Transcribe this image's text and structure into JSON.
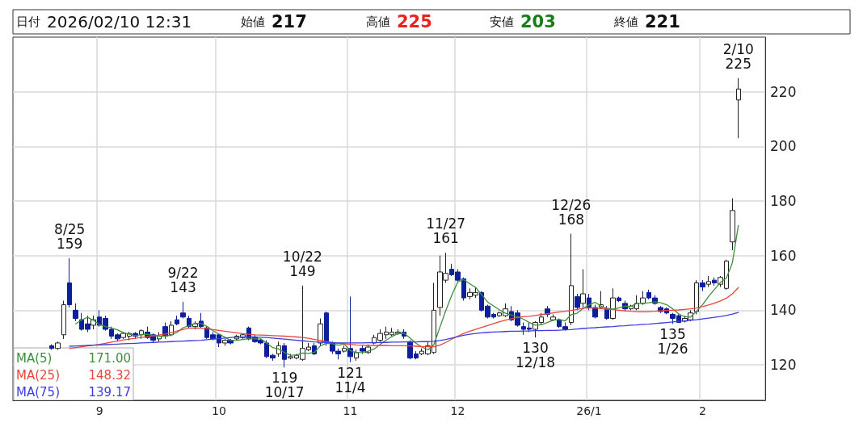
{
  "chart_data": {
    "type": "candlestick",
    "categories": [
      null,
      null,
      null,
      null,
      null,
      null,
      null,
      null,
      null,
      null,
      null,
      null,
      null,
      null,
      "9",
      null,
      null,
      null,
      null,
      null,
      null,
      null,
      null,
      null,
      null,
      null,
      null,
      null,
      null,
      null,
      null,
      null,
      null,
      null,
      "10",
      null,
      null,
      null,
      null,
      null,
      null,
      null,
      null,
      null,
      null,
      null,
      null,
      null,
      null,
      null,
      null,
      null,
      null,
      null,
      null,
      null,
      "11",
      null,
      null,
      null,
      null,
      null,
      null,
      null,
      null,
      null,
      null,
      null,
      null,
      null,
      null,
      null,
      null,
      null,
      "12",
      null,
      null,
      null,
      null,
      null,
      null,
      null,
      null,
      null,
      null,
      null,
      null,
      null,
      null,
      null,
      null,
      null,
      null,
      null,
      null,
      null,
      "26/1",
      null,
      null,
      null,
      null,
      null,
      null,
      null,
      null,
      null,
      null,
      null,
      null,
      null,
      null,
      null,
      null,
      null,
      null,
      "2",
      null,
      null,
      null,
      null,
      null,
      null
    ],
    "ohlc": [
      null,
      null,
      null,
      null,
      null,
      null,
      [
        127,
        127.5,
        125.5,
        126
      ],
      [
        126,
        128.5,
        125.5,
        128
      ],
      [
        131,
        143.5,
        129.5,
        142
      ],
      [
        150,
        159,
        141,
        142
      ],
      [
        140,
        142.5,
        136,
        137
      ],
      [
        136.5,
        139,
        132.5,
        133
      ],
      [
        135,
        138,
        132,
        133
      ],
      [
        134.5,
        138,
        133,
        136.5
      ],
      [
        137.5,
        140,
        134,
        134.5
      ],
      [
        137,
        138,
        132.5,
        133
      ],
      [
        133,
        134,
        129.5,
        130.5
      ],
      [
        131,
        131.5,
        128.5,
        129.5
      ],
      [
        130,
        132,
        129.5,
        131.5
      ],
      [
        130.5,
        132,
        129,
        131.5
      ],
      [
        131.5,
        132,
        129.5,
        130.5
      ],
      [
        131,
        133,
        129.5,
        132.5
      ],
      [
        132,
        134,
        129.5,
        130
      ],
      [
        131,
        131.5,
        128,
        129
      ],
      [
        129.5,
        132,
        128.5,
        130.5
      ],
      [
        134,
        135.5,
        129.5,
        130.5
      ],
      [
        131,
        136,
        130.5,
        134.5
      ],
      [
        136.5,
        138,
        134.5,
        135
      ],
      [
        139,
        143,
        137,
        137.5
      ],
      [
        137,
        138,
        133.5,
        134
      ],
      [
        134,
        136,
        133,
        135
      ],
      [
        136,
        139,
        133.5,
        134
      ],
      [
        133.5,
        134,
        129.5,
        130
      ],
      [
        131,
        132,
        129,
        129.5
      ],
      [
        131,
        131.5,
        126.5,
        128
      ],
      [
        128,
        129.5,
        127,
        129
      ],
      [
        129,
        129.5,
        127.5,
        128
      ],
      [
        129.5,
        131,
        129,
        130.5
      ],
      [
        130,
        131.5,
        129.5,
        131
      ],
      [
        133.5,
        134,
        129,
        129.5
      ],
      [
        130,
        131,
        128,
        128.5
      ],
      [
        129,
        129.5,
        127.5,
        128
      ],
      [
        128,
        129,
        122.5,
        123
      ],
      [
        123.5,
        124,
        121.5,
        122.5
      ],
      [
        124,
        128.5,
        123,
        127
      ],
      [
        127,
        128,
        119,
        122
      ],
      [
        122.5,
        124,
        122,
        123
      ],
      [
        122.5,
        124,
        122,
        123.5
      ],
      [
        122,
        149,
        121.5,
        126
      ],
      [
        125.5,
        128,
        125,
        126.5
      ],
      [
        127,
        128,
        123.5,
        124
      ],
      [
        128,
        137,
        127,
        135
      ],
      [
        139,
        139.5,
        127,
        128
      ],
      [
        128,
        128.5,
        124,
        125
      ],
      [
        125,
        126,
        122,
        124
      ],
      [
        125,
        127,
        124.5,
        126
      ],
      [
        126,
        145,
        121,
        123
      ],
      [
        122.5,
        125.5,
        121.5,
        124.5
      ],
      [
        126,
        127,
        124,
        125
      ],
      [
        124.5,
        127.5,
        124,
        126.5
      ],
      [
        128,
        131,
        127.5,
        130
      ],
      [
        129,
        133,
        128.5,
        131.5
      ],
      [
        131,
        134,
        129.5,
        132
      ],
      [
        131,
        133.5,
        130.5,
        132
      ],
      [
        131.5,
        133,
        131,
        132
      ],
      [
        132,
        133,
        129.5,
        130.5
      ],
      [
        128.5,
        129,
        122,
        122.5
      ],
      [
        124,
        125,
        122,
        122.5
      ],
      [
        124,
        126,
        123.5,
        125
      ],
      [
        124,
        128.5,
        123.5,
        127
      ],
      [
        124.5,
        150,
        124,
        140
      ],
      [
        141,
        160,
        138,
        154
      ],
      [
        151,
        161,
        150,
        153.5
      ],
      [
        155,
        157,
        152.5,
        153
      ],
      [
        154,
        155,
        150.5,
        151
      ],
      [
        151.5,
        152,
        143.5,
        144.5
      ],
      [
        145,
        148,
        144,
        146.5
      ],
      [
        145.5,
        148.5,
        144.5,
        146.5
      ],
      [
        146.5,
        147,
        139.5,
        140
      ],
      [
        141.5,
        142,
        137,
        137.5
      ],
      [
        138.5,
        139,
        137,
        137.5
      ],
      [
        138,
        139.5,
        137.5,
        139
      ],
      [
        138,
        142.5,
        137.5,
        140.5
      ],
      [
        139.5,
        141.5,
        136,
        136.5
      ],
      [
        139,
        140,
        134,
        134.5
      ],
      [
        134,
        135.5,
        131,
        133
      ],
      [
        133.5,
        135.5,
        132,
        133
      ],
      [
        133,
        136,
        130,
        135.5
      ],
      [
        135.5,
        139,
        134.5,
        137.5
      ],
      [
        140.5,
        141.5,
        137.5,
        138.5
      ],
      [
        136.5,
        138.5,
        136,
        137.5
      ],
      [
        136.5,
        137,
        133.5,
        134
      ],
      [
        134,
        135.5,
        132.5,
        133
      ],
      [
        135.5,
        168,
        134.5,
        149
      ],
      [
        145,
        146,
        140,
        141
      ],
      [
        142.5,
        155,
        141,
        146
      ],
      [
        144.5,
        146,
        140,
        141
      ],
      [
        141,
        142,
        137,
        137.5
      ],
      [
        141,
        147,
        140.5,
        142
      ],
      [
        140.5,
        141.5,
        136.5,
        137
      ],
      [
        137,
        148,
        136.5,
        144.5
      ],
      [
        144.5,
        145,
        143,
        143.5
      ],
      [
        142.5,
        143.5,
        139.5,
        140.5
      ],
      [
        140.5,
        142,
        140,
        141.5
      ],
      [
        140.5,
        145.5,
        140,
        142.5
      ],
      [
        142.5,
        147,
        142,
        144.5
      ],
      [
        146.5,
        147.5,
        144,
        144.5
      ],
      [
        144.5,
        145.5,
        142,
        142.5
      ],
      [
        141,
        141.5,
        139,
        139.5
      ],
      [
        140.5,
        141,
        138.5,
        139
      ],
      [
        138.5,
        139,
        135,
        137
      ],
      [
        138,
        138.5,
        135.5,
        135.5
      ],
      [
        136,
        138,
        135.5,
        137
      ],
      [
        136.5,
        140,
        136,
        139
      ],
      [
        139.5,
        151,
        138.5,
        150
      ],
      [
        150,
        151,
        147,
        148.5
      ],
      [
        149.5,
        152.5,
        148.5,
        150.5
      ],
      [
        151,
        152,
        149,
        150
      ],
      [
        149.5,
        152.5,
        148.5,
        152
      ],
      [
        148,
        158.5,
        147.5,
        158
      ],
      [
        165,
        181,
        162,
        176.5
      ],
      [
        217,
        225,
        203,
        221
      ]
    ],
    "series": [
      {
        "name": "MA(5)",
        "type": "line",
        "color": "#3e8e3e",
        "values": [
          null,
          null,
          null,
          null,
          null,
          null,
          null,
          null,
          null,
          null,
          135.0,
          136.4,
          137.4,
          136.3,
          134.8,
          134.0,
          133.5,
          132.8,
          131.8,
          131.2,
          130.7,
          131.1,
          131.2,
          130.7,
          130.5,
          130.5,
          130.9,
          131.9,
          133.6,
          134.3,
          135.2,
          135.1,
          134.1,
          132.5,
          131.3,
          130.1,
          128.9,
          129.0,
          129.3,
          129.6,
          129.5,
          129.5,
          128.0,
          126.3,
          125.8,
          124.5,
          123.5,
          123.6,
          124.3,
          124.2,
          124.6,
          127.0,
          127.9,
          127.7,
          127.2,
          127.6,
          125.2,
          124.5,
          124.5,
          125.0,
          125.8,
          127.5,
          129.0,
          130.4,
          131.5,
          131.6,
          129.8,
          127.9,
          126.5,
          125.5,
          127.4,
          133.7,
          139.9,
          145.5,
          150.3,
          151.2,
          149.7,
          148.3,
          145.7,
          143.0,
          141.6,
          140.1,
          138.9,
          138.2,
          137.6,
          136.7,
          135.5,
          134.5,
          134.7,
          135.5,
          136.4,
          136.6,
          136.1,
          138.4,
          138.9,
          140.6,
          142.0,
          142.9,
          141.5,
          140.7,
          140.4,
          140.9,
          141.5,
          141.4,
          142.5,
          142.5,
          142.7,
          143.1,
          142.7,
          142.0,
          140.5,
          138.7,
          137.6,
          137.5,
          139.7,
          142.0,
          145.0,
          147.6,
          150.2,
          151.8,
          157.4,
          171.0
        ]
      },
      {
        "name": "MA(25)",
        "type": "line",
        "color": "#e8453c",
        "values": [
          null,
          null,
          null,
          null,
          null,
          null,
          null,
          null,
          null,
          126.0,
          126.3,
          126.6,
          126.9,
          127.2,
          127.5,
          127.9,
          128.3,
          128.7,
          129.1,
          129.4,
          129.7,
          130.0,
          130.3,
          130.6,
          130.9,
          131.3,
          131.8,
          132.4,
          133.0,
          133.4,
          133.5,
          133.4,
          133.2,
          132.9,
          132.6,
          132.3,
          132.0,
          131.7,
          131.4,
          131.2,
          131.0,
          130.9,
          130.8,
          130.7,
          130.6,
          130.5,
          130.4,
          130.2,
          130.0,
          129.7,
          129.3,
          128.9,
          128.5,
          128.2,
          127.9,
          127.7,
          127.5,
          127.3,
          127.2,
          127.1,
          127.1,
          127.1,
          127.1,
          127.0,
          127.0,
          127.0,
          126.9,
          126.8,
          126.7,
          126.6,
          126.6,
          127.2,
          128.2,
          129.4,
          130.5,
          131.5,
          132.3,
          133.0,
          133.7,
          134.4,
          135.1,
          135.8,
          136.4,
          136.9,
          137.3,
          137.6,
          137.8,
          138.1,
          138.4,
          138.7,
          139.0,
          139.3,
          139.6,
          139.9,
          140.3,
          140.7,
          140.9,
          140.8,
          140.6,
          140.4,
          140.2,
          140.0,
          139.8,
          139.6,
          139.5,
          139.4,
          139.5,
          139.6,
          139.8,
          139.9,
          140.0,
          140.1,
          140.3,
          140.5,
          140.8,
          141.3,
          141.9,
          142.6,
          143.4,
          144.4,
          146.0,
          148.3
        ]
      },
      {
        "name": "MA(75)",
        "type": "line",
        "color": "#3c3ce0",
        "values": [
          null,
          null,
          null,
          null,
          null,
          null,
          null,
          null,
          null,
          126.8,
          126.9,
          127.0,
          127.1,
          127.2,
          127.3,
          127.4,
          127.5,
          127.6,
          127.7,
          127.8,
          127.9,
          128.0,
          128.1,
          128.2,
          128.3,
          128.4,
          128.5,
          128.6,
          128.7,
          128.8,
          128.9,
          129.0,
          129.2,
          129.4,
          129.6,
          129.8,
          130.0,
          130.1,
          130.2,
          130.2,
          130.2,
          130.1,
          130.0,
          129.8,
          129.6,
          129.4,
          129.2,
          129.0,
          128.8,
          128.6,
          128.4,
          128.3,
          128.2,
          128.1,
          128.0,
          128.0,
          128.0,
          128.0,
          128.0,
          128.1,
          128.1,
          128.2,
          128.2,
          128.3,
          128.3,
          128.4,
          128.4,
          128.4,
          128.5,
          128.5,
          128.6,
          128.9,
          129.3,
          129.8,
          130.3,
          130.8,
          131.2,
          131.5,
          131.7,
          131.9,
          132.0,
          132.1,
          132.2,
          132.3,
          132.3,
          132.4,
          132.4,
          132.5,
          132.5,
          132.6,
          132.6,
          132.7,
          132.8,
          132.9,
          133.1,
          133.3,
          133.5,
          133.6,
          133.8,
          133.9,
          134.0,
          134.2,
          134.3,
          134.5,
          134.6,
          134.8,
          134.9,
          135.1,
          135.3,
          135.5,
          135.7,
          135.9,
          136.1,
          136.3,
          136.5,
          136.8,
          137.1,
          137.4,
          137.7,
          138.1,
          138.6,
          139.2
        ]
      }
    ],
    "ylim": [
      107,
      240
    ],
    "yticks": [
      120,
      140,
      160,
      180,
      200,
      220
    ],
    "grid": true,
    "legend": "bottom left",
    "marker": "none",
    "line_style": "solid",
    "annotations": [
      "日付 2026/02/10 12:31",
      "始値 217",
      "高値 225",
      "安値 203",
      "終値 221",
      "171.00",
      "148.32",
      "139.17",
      {
        "text": "8/25\n159",
        "y": 159
      },
      {
        "text": "9/22\n143",
        "y": 143
      },
      {
        "text": "10/22\n149",
        "y": 149
      },
      {
        "text": "119\n10/17",
        "y": 119
      },
      {
        "text": "121\n11/4",
        "y": 121
      },
      {
        "text": "11/27\n161",
        "y": 161
      },
      {
        "text": "130\n12/18",
        "y": 130
      },
      {
        "text": "12/26\n168",
        "y": 168
      },
      {
        "text": "135\n1/26",
        "y": 135
      },
      {
        "text": "2/10\n225",
        "y": 225
      }
    ]
  }
}
